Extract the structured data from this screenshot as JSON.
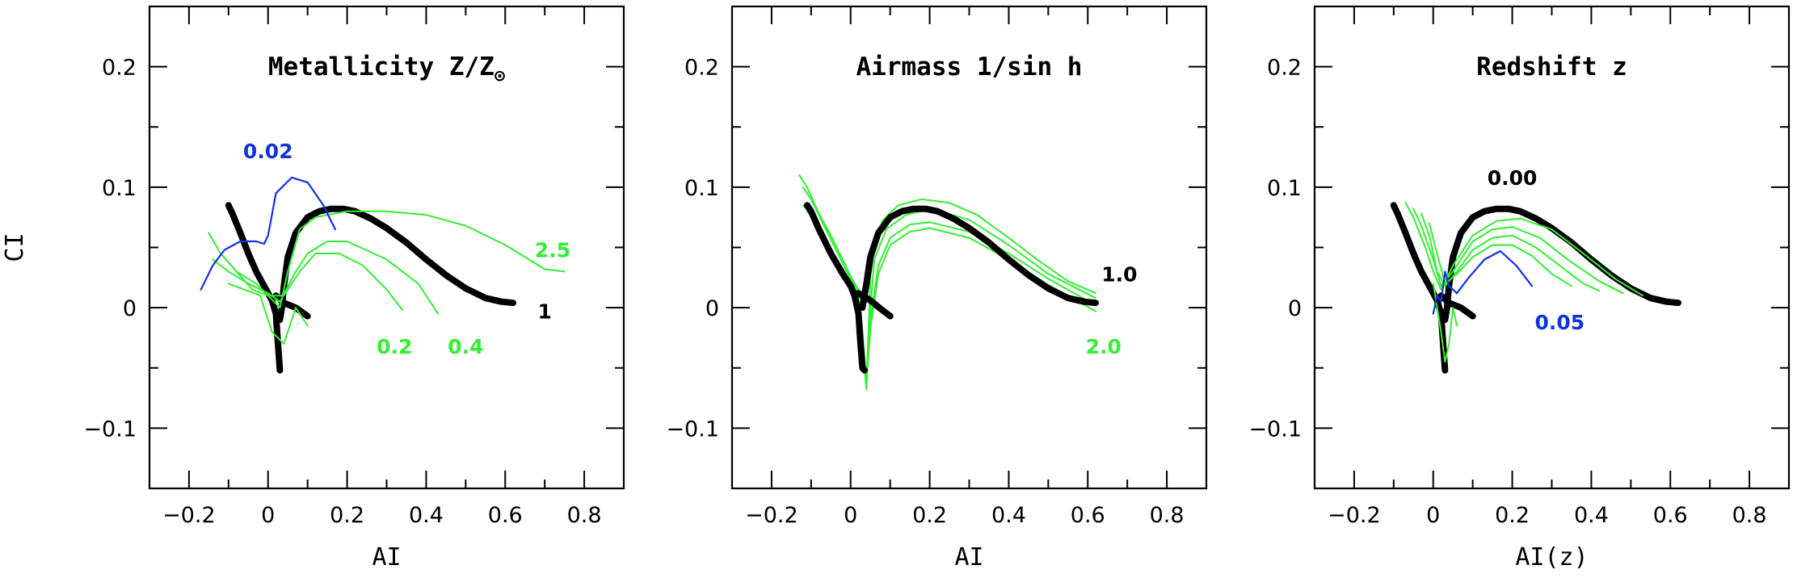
{
  "colors": {
    "main": "#000000",
    "variant": "#33ee33",
    "limit": "#1133dd"
  },
  "chart_data": [
    {
      "type": "line",
      "title": "Metallicity Z/Z",
      "title_symbol": "⊙",
      "xlabel": "AI",
      "ylabel": "CI",
      "xlim": [
        -0.3,
        0.9
      ],
      "ylim": [
        -0.15,
        0.25
      ],
      "xticks": [
        "−0.2",
        "0",
        "0.2",
        "0.4",
        "0.6",
        "0.8"
      ],
      "yticks": [
        "−0.1",
        "0",
        "0.1",
        "0.2"
      ],
      "grid": false,
      "annotations": [
        {
          "text": "0.02",
          "x": 0.0,
          "y": 0.13,
          "color": "limit"
        },
        {
          "text": "2.5",
          "x": 0.72,
          "y": 0.048,
          "color": "variant"
        },
        {
          "text": "1",
          "x": 0.7,
          "y": -0.003,
          "color": "main"
        },
        {
          "text": "0.2",
          "x": 0.32,
          "y": -0.032,
          "color": "variant"
        },
        {
          "text": "0.4",
          "x": 0.5,
          "y": -0.032,
          "color": "variant"
        }
      ],
      "series": [
        {
          "color": "main",
          "x": [
            -0.1,
            -0.09,
            -0.07,
            -0.05,
            -0.03,
            -0.01,
            0.0,
            0.01,
            0.02,
            0.025,
            0.03
          ],
          "y": [
            0.085,
            0.078,
            0.062,
            0.045,
            0.03,
            0.018,
            0.012,
            0.006,
            -0.005,
            -0.03,
            -0.052
          ]
        },
        {
          "color": "main",
          "x": [
            0.03,
            0.035,
            0.04,
            0.05,
            0.07,
            0.1,
            0.13,
            0.16,
            0.19,
            0.22,
            0.26,
            0.3,
            0.35,
            0.4,
            0.45,
            0.5,
            0.55,
            0.59,
            0.62
          ],
          "y": [
            -0.01,
            0.0,
            0.018,
            0.042,
            0.062,
            0.075,
            0.08,
            0.082,
            0.082,
            0.08,
            0.074,
            0.066,
            0.054,
            0.04,
            0.027,
            0.016,
            0.008,
            0.005,
            0.004
          ]
        },
        {
          "color": "main",
          "x": [
            0.02,
            0.04,
            0.07,
            0.1
          ],
          "y": [
            0.01,
            0.004,
            0.0,
            -0.007
          ]
        },
        {
          "color": "variant",
          "x": [
            -0.15,
            -0.12,
            -0.08,
            -0.04,
            0.0,
            0.03,
            0.05,
            0.08,
            0.12,
            0.2,
            0.3,
            0.4,
            0.5,
            0.6,
            0.7,
            0.75
          ],
          "y": [
            0.062,
            0.045,
            0.03,
            0.015,
            0.01,
            0.0,
            0.03,
            0.065,
            0.075,
            0.08,
            0.08,
            0.077,
            0.068,
            0.052,
            0.032,
            0.03
          ]
        },
        {
          "color": "variant",
          "x": [
            -0.14,
            -0.1,
            -0.05,
            0.0,
            0.03,
            0.07,
            0.1,
            0.15,
            0.2,
            0.3,
            0.38,
            0.43
          ],
          "y": [
            0.04,
            0.03,
            0.02,
            0.012,
            0.005,
            0.03,
            0.045,
            0.055,
            0.055,
            0.04,
            0.02,
            -0.005
          ]
        },
        {
          "color": "variant",
          "x": [
            -0.12,
            -0.08,
            -0.03,
            0.0,
            0.04,
            0.08,
            0.12,
            0.18,
            0.24,
            0.3,
            0.34
          ],
          "y": [
            0.045,
            0.03,
            0.02,
            0.01,
            0.01,
            0.03,
            0.045,
            0.045,
            0.035,
            0.015,
            -0.002
          ]
        },
        {
          "color": "variant",
          "x": [
            -0.1,
            -0.06,
            -0.02,
            0.01,
            0.04,
            0.07,
            0.1
          ],
          "y": [
            0.02,
            0.015,
            0.01,
            -0.02,
            -0.03,
            0.0,
            -0.015
          ]
        },
        {
          "color": "limit",
          "x": [
            -0.17,
            -0.14,
            -0.11,
            -0.07,
            -0.03,
            -0.01,
            0.0,
            0.02,
            0.06,
            0.1,
            0.14,
            0.17
          ],
          "y": [
            0.015,
            0.035,
            0.048,
            0.055,
            0.055,
            0.053,
            0.06,
            0.095,
            0.108,
            0.104,
            0.085,
            0.065
          ]
        }
      ]
    },
    {
      "type": "line",
      "title": "Airmass 1/sin h",
      "xlabel": "AI",
      "ylabel": "",
      "xlim": [
        -0.3,
        0.9
      ],
      "ylim": [
        -0.15,
        0.25
      ],
      "xticks": [
        "−0.2",
        "0",
        "0.2",
        "0.4",
        "0.6",
        "0.8"
      ],
      "yticks": [
        "−0.1",
        "0",
        "0.1",
        "0.2"
      ],
      "grid": false,
      "annotations": [
        {
          "text": "1.0",
          "x": 0.68,
          "y": 0.028,
          "color": "main"
        },
        {
          "text": "2.0",
          "x": 0.64,
          "y": -0.032,
          "color": "variant"
        }
      ],
      "series": [
        {
          "color": "variant",
          "x": [
            -0.13,
            -0.11,
            -0.08,
            -0.05,
            -0.02,
            0.0,
            0.02,
            0.03,
            0.035,
            0.04,
            0.045,
            0.05,
            0.06,
            0.08,
            0.12,
            0.18,
            0.25,
            0.32,
            0.4,
            0.48,
            0.55,
            0.62
          ],
          "y": [
            0.11,
            0.1,
            0.078,
            0.06,
            0.04,
            0.026,
            0.015,
            -0.02,
            -0.05,
            -0.068,
            -0.02,
            0.025,
            0.05,
            0.072,
            0.085,
            0.09,
            0.087,
            0.077,
            0.058,
            0.038,
            0.022,
            0.012
          ]
        },
        {
          "color": "variant",
          "x": [
            -0.12,
            -0.1,
            -0.07,
            -0.04,
            -0.01,
            0.02,
            0.03,
            0.04,
            0.05,
            0.06,
            0.09,
            0.14,
            0.2,
            0.3,
            0.4,
            0.5,
            0.62
          ],
          "y": [
            0.1,
            0.09,
            0.07,
            0.05,
            0.03,
            0.012,
            -0.02,
            -0.06,
            0.0,
            0.04,
            0.065,
            0.077,
            0.082,
            0.073,
            0.052,
            0.028,
            0.008
          ]
        },
        {
          "color": "variant",
          "x": [
            -0.12,
            -0.09,
            -0.05,
            -0.01,
            0.02,
            0.03,
            0.04,
            0.05,
            0.07,
            0.1,
            0.15,
            0.2,
            0.3,
            0.4,
            0.5,
            0.62
          ],
          "y": [
            0.085,
            0.074,
            0.048,
            0.02,
            0.005,
            -0.03,
            -0.058,
            -0.01,
            0.035,
            0.058,
            0.069,
            0.071,
            0.063,
            0.045,
            0.024,
            0.002
          ]
        },
        {
          "color": "variant",
          "x": [
            -0.11,
            -0.08,
            -0.04,
            0.0,
            0.02,
            0.03,
            0.04,
            0.05,
            0.07,
            0.1,
            0.15,
            0.2,
            0.3,
            0.4,
            0.5,
            0.62
          ],
          "y": [
            0.08,
            0.068,
            0.042,
            0.014,
            0.0,
            -0.035,
            -0.062,
            -0.018,
            0.028,
            0.052,
            0.063,
            0.066,
            0.058,
            0.04,
            0.019,
            -0.003
          ]
        },
        {
          "color": "main",
          "x": [
            -0.11,
            -0.1,
            -0.08,
            -0.05,
            -0.02,
            0.0,
            0.01,
            0.02,
            0.025,
            0.03,
            0.035
          ],
          "y": [
            0.085,
            0.08,
            0.065,
            0.045,
            0.028,
            0.018,
            0.01,
            -0.005,
            -0.03,
            -0.05,
            -0.052
          ]
        },
        {
          "color": "main",
          "x": [
            0.03,
            0.04,
            0.05,
            0.07,
            0.1,
            0.13,
            0.16,
            0.19,
            0.22,
            0.26,
            0.3,
            0.35,
            0.4,
            0.45,
            0.5,
            0.55,
            0.59,
            0.62
          ],
          "y": [
            0.0,
            0.02,
            0.042,
            0.062,
            0.075,
            0.08,
            0.082,
            0.082,
            0.08,
            0.074,
            0.066,
            0.054,
            0.04,
            0.027,
            0.016,
            0.008,
            0.005,
            0.004
          ]
        },
        {
          "color": "main",
          "x": [
            0.02,
            0.05,
            0.08,
            0.1
          ],
          "y": [
            0.012,
            0.006,
            -0.002,
            -0.007
          ]
        }
      ]
    },
    {
      "type": "line",
      "title": "Redshift z",
      "xlabel": "AI(z)",
      "ylabel": "",
      "xlim": [
        -0.3,
        0.9
      ],
      "ylim": [
        -0.15,
        0.25
      ],
      "xticks": [
        "−0.2",
        "0",
        "0.2",
        "0.4",
        "0.6",
        "0.8"
      ],
      "yticks": [
        "−0.1",
        "0",
        "0.1",
        "0.2"
      ],
      "grid": false,
      "annotations": [
        {
          "text": "0.00",
          "x": 0.2,
          "y": 0.108,
          "color": "main"
        },
        {
          "text": "0.05",
          "x": 0.32,
          "y": -0.012,
          "color": "limit"
        }
      ],
      "series": [
        {
          "color": "main",
          "x": [
            -0.1,
            -0.09,
            -0.07,
            -0.05,
            -0.03,
            -0.01,
            0.0,
            0.01,
            0.02,
            0.025,
            0.03
          ],
          "y": [
            0.085,
            0.078,
            0.062,
            0.045,
            0.03,
            0.018,
            0.012,
            0.006,
            -0.005,
            -0.03,
            -0.052
          ]
        },
        {
          "color": "main",
          "x": [
            0.03,
            0.035,
            0.04,
            0.05,
            0.07,
            0.1,
            0.13,
            0.16,
            0.19,
            0.22,
            0.26,
            0.3,
            0.35,
            0.4,
            0.45,
            0.5,
            0.55,
            0.59,
            0.62
          ],
          "y": [
            -0.01,
            0.0,
            0.018,
            0.042,
            0.062,
            0.075,
            0.08,
            0.082,
            0.082,
            0.08,
            0.074,
            0.066,
            0.054,
            0.04,
            0.027,
            0.016,
            0.008,
            0.005,
            0.004
          ]
        },
        {
          "color": "main",
          "x": [
            0.02,
            0.04,
            0.07,
            0.1
          ],
          "y": [
            0.01,
            0.004,
            0.0,
            -0.007
          ]
        },
        {
          "color": "variant",
          "x": [
            -0.07,
            -0.05,
            -0.02,
            0.0,
            0.02,
            0.05,
            0.1,
            0.16,
            0.22,
            0.3,
            0.38,
            0.46,
            0.53
          ],
          "y": [
            0.087,
            0.075,
            0.05,
            0.03,
            0.015,
            0.035,
            0.06,
            0.072,
            0.074,
            0.065,
            0.045,
            0.024,
            0.01
          ]
        },
        {
          "color": "variant",
          "x": [
            -0.05,
            -0.03,
            0.0,
            0.02,
            0.05,
            0.1,
            0.15,
            0.2,
            0.27,
            0.34,
            0.42,
            0.48
          ],
          "y": [
            0.082,
            0.068,
            0.04,
            0.018,
            0.03,
            0.055,
            0.065,
            0.067,
            0.058,
            0.04,
            0.022,
            0.012
          ]
        },
        {
          "color": "variant",
          "x": [
            -0.03,
            -0.01,
            0.01,
            0.03,
            0.06,
            0.1,
            0.15,
            0.2,
            0.26,
            0.32,
            0.38,
            0.42
          ],
          "y": [
            0.078,
            0.06,
            0.03,
            0.018,
            0.03,
            0.048,
            0.058,
            0.06,
            0.05,
            0.035,
            0.02,
            0.014
          ]
        },
        {
          "color": "variant",
          "x": [
            -0.01,
            0.01,
            0.03,
            0.06,
            0.1,
            0.15,
            0.2,
            0.25,
            0.3,
            0.35
          ],
          "y": [
            0.07,
            0.045,
            0.02,
            0.028,
            0.042,
            0.052,
            0.052,
            0.043,
            0.028,
            0.018
          ]
        },
        {
          "color": "variant",
          "x": [
            0.0,
            0.02,
            0.03,
            0.04,
            0.05,
            0.06
          ],
          "y": [
            0.02,
            -0.02,
            -0.045,
            -0.03,
            0.0,
            -0.015
          ]
        },
        {
          "color": "limit",
          "x": [
            0.0,
            0.01,
            0.02,
            0.03,
            0.04,
            0.06,
            0.09,
            0.13,
            0.17,
            0.21,
            0.25
          ],
          "y": [
            -0.005,
            0.01,
            0.005,
            0.03,
            0.018,
            0.012,
            0.025,
            0.04,
            0.047,
            0.035,
            0.018
          ]
        }
      ]
    }
  ]
}
